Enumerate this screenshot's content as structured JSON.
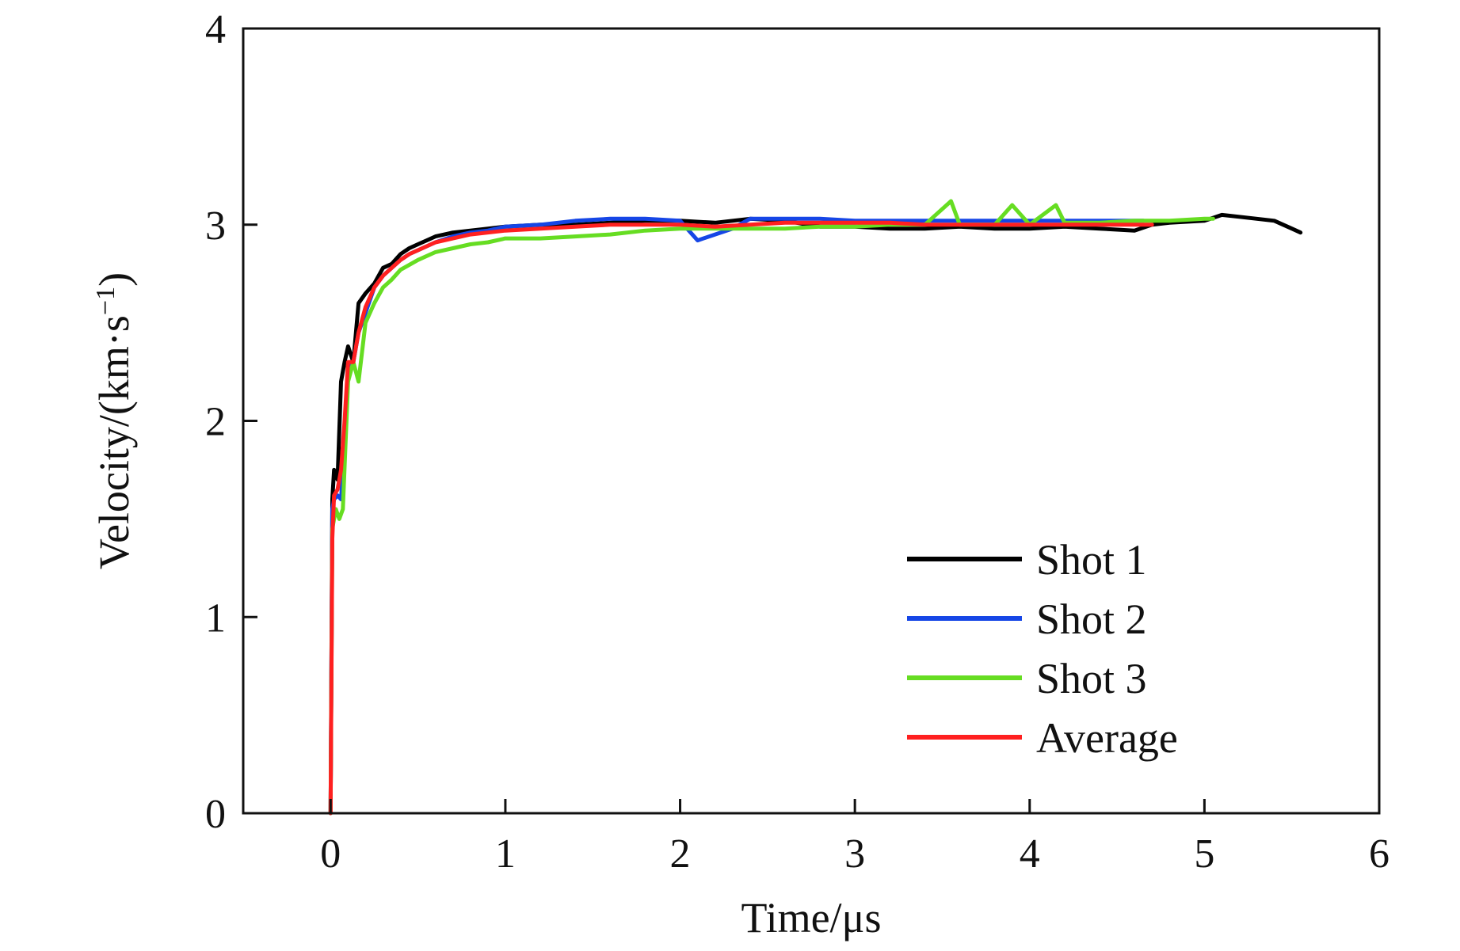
{
  "chart_data": {
    "type": "line",
    "title": "",
    "xlabel": "Time/μs",
    "ylabel": {
      "text": "Velocity/(km·s",
      "superscript": "−1",
      "suffix": ")"
    },
    "xlim": [
      -0.5,
      6
    ],
    "ylim": [
      0,
      4
    ],
    "xticks": [
      0,
      1,
      2,
      3,
      4,
      5,
      6
    ],
    "yticks": [
      0,
      1,
      2,
      3,
      4
    ],
    "grid": false,
    "legend_position": "bottom-right",
    "series": [
      {
        "name": "Shot 1",
        "color": "#000000",
        "x": [
          0,
          0.01,
          0.02,
          0.04,
          0.06,
          0.08,
          0.1,
          0.13,
          0.16,
          0.2,
          0.25,
          0.3,
          0.35,
          0.4,
          0.45,
          0.5,
          0.55,
          0.6,
          0.7,
          0.8,
          0.9,
          1.0,
          1.2,
          1.4,
          1.6,
          1.8,
          2.0,
          2.2,
          2.4,
          2.6,
          2.8,
          3.0,
          3.2,
          3.4,
          3.6,
          3.8,
          4.0,
          4.2,
          4.4,
          4.6,
          4.7,
          4.8,
          5.0,
          5.1,
          5.2,
          5.3,
          5.4,
          5.5,
          5.55
        ],
        "y": [
          0,
          1.6,
          1.75,
          1.7,
          2.2,
          2.3,
          2.38,
          2.3,
          2.6,
          2.65,
          2.7,
          2.78,
          2.8,
          2.85,
          2.88,
          2.9,
          2.92,
          2.94,
          2.96,
          2.97,
          2.98,
          2.99,
          3.0,
          3.0,
          3.01,
          3.02,
          3.02,
          3.01,
          3.03,
          3.02,
          2.99,
          2.99,
          2.98,
          2.98,
          2.99,
          2.98,
          2.98,
          2.99,
          2.98,
          2.97,
          3.0,
          3.01,
          3.02,
          3.05,
          3.04,
          3.03,
          3.02,
          2.98,
          2.96
        ]
      },
      {
        "name": "Shot 2",
        "color": "#1646e6",
        "x": [
          0,
          0.01,
          0.02,
          0.04,
          0.06,
          0.08,
          0.1,
          0.13,
          0.16,
          0.2,
          0.25,
          0.3,
          0.35,
          0.4,
          0.45,
          0.5,
          0.55,
          0.6,
          0.7,
          0.8,
          0.9,
          1.0,
          1.2,
          1.4,
          1.6,
          1.8,
          2.0,
          2.1,
          2.2,
          2.3,
          2.4,
          2.6,
          2.8,
          3.0,
          3.2,
          3.4,
          3.6,
          3.8,
          4.0,
          4.2,
          4.4,
          4.6,
          4.65
        ],
        "y": [
          0,
          1.55,
          1.6,
          1.62,
          1.6,
          1.9,
          2.28,
          2.3,
          2.45,
          2.55,
          2.68,
          2.74,
          2.78,
          2.82,
          2.85,
          2.87,
          2.89,
          2.91,
          2.94,
          2.96,
          2.97,
          2.99,
          3.0,
          3.02,
          3.03,
          3.03,
          3.02,
          2.92,
          2.95,
          2.98,
          3.03,
          3.03,
          3.03,
          3.02,
          3.02,
          3.02,
          3.02,
          3.02,
          3.02,
          3.02,
          3.02,
          3.02,
          3.02
        ]
      },
      {
        "name": "Shot 3",
        "color": "#66dd22",
        "x": [
          0,
          0.01,
          0.03,
          0.05,
          0.07,
          0.1,
          0.13,
          0.16,
          0.2,
          0.25,
          0.3,
          0.35,
          0.4,
          0.5,
          0.6,
          0.7,
          0.8,
          0.9,
          1.0,
          1.2,
          1.4,
          1.6,
          1.8,
          2.0,
          2.2,
          2.4,
          2.6,
          2.8,
          3.0,
          3.2,
          3.4,
          3.55,
          3.6,
          3.8,
          3.9,
          4.0,
          4.15,
          4.2,
          4.4,
          4.6,
          4.8,
          5.0,
          5.05
        ],
        "y": [
          0,
          1.45,
          1.55,
          1.5,
          1.55,
          2.2,
          2.3,
          2.2,
          2.5,
          2.6,
          2.68,
          2.72,
          2.77,
          2.82,
          2.86,
          2.88,
          2.9,
          2.91,
          2.93,
          2.93,
          2.94,
          2.95,
          2.97,
          2.98,
          2.98,
          2.98,
          2.98,
          2.99,
          2.99,
          3.0,
          3.0,
          3.12,
          3.0,
          3.0,
          3.1,
          3.0,
          3.1,
          3.01,
          3.01,
          3.02,
          3.02,
          3.03,
          3.03
        ]
      },
      {
        "name": "Average",
        "color": "#ff2020",
        "x": [
          0,
          0.01,
          0.02,
          0.04,
          0.06,
          0.08,
          0.1,
          0.13,
          0.16,
          0.2,
          0.25,
          0.3,
          0.35,
          0.4,
          0.45,
          0.5,
          0.55,
          0.6,
          0.7,
          0.8,
          0.9,
          1.0,
          1.2,
          1.4,
          1.6,
          1.8,
          2.0,
          2.2,
          2.4,
          2.6,
          2.8,
          3.0,
          3.2,
          3.4,
          3.6,
          3.8,
          4.0,
          4.2,
          4.4,
          4.6,
          4.7
        ],
        "y": [
          0,
          1.4,
          1.62,
          1.65,
          1.75,
          2.0,
          2.3,
          2.3,
          2.45,
          2.58,
          2.68,
          2.74,
          2.78,
          2.82,
          2.85,
          2.87,
          2.89,
          2.91,
          2.93,
          2.95,
          2.96,
          2.97,
          2.98,
          2.99,
          3.0,
          3.0,
          3.0,
          2.99,
          3.0,
          3.01,
          3.01,
          3.01,
          3.01,
          3.0,
          3.0,
          3.0,
          3.0,
          3.0,
          3.0,
          3.0,
          3.0
        ]
      }
    ]
  }
}
